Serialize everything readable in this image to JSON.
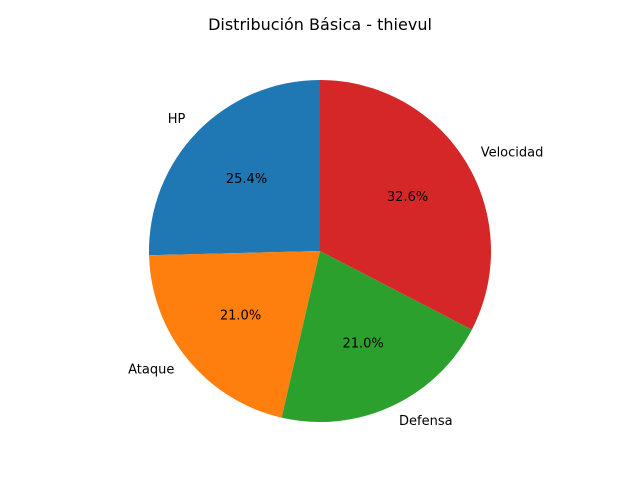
{
  "chart_data": {
    "type": "pie",
    "title": "Distribución Básica - thievul",
    "categories": [
      "HP",
      "Ataque",
      "Defensa",
      "Velocidad"
    ],
    "values": [
      25.4,
      21.0,
      21.0,
      32.6
    ],
    "percent_labels": [
      "25.4%",
      "21.0%",
      "21.0%",
      "32.6%"
    ],
    "colors": [
      "#1f77b4",
      "#ff7f0e",
      "#2ca02c",
      "#d62728"
    ],
    "start_angle_deg": 90,
    "direction": "counterclockwise",
    "legend": "none"
  }
}
